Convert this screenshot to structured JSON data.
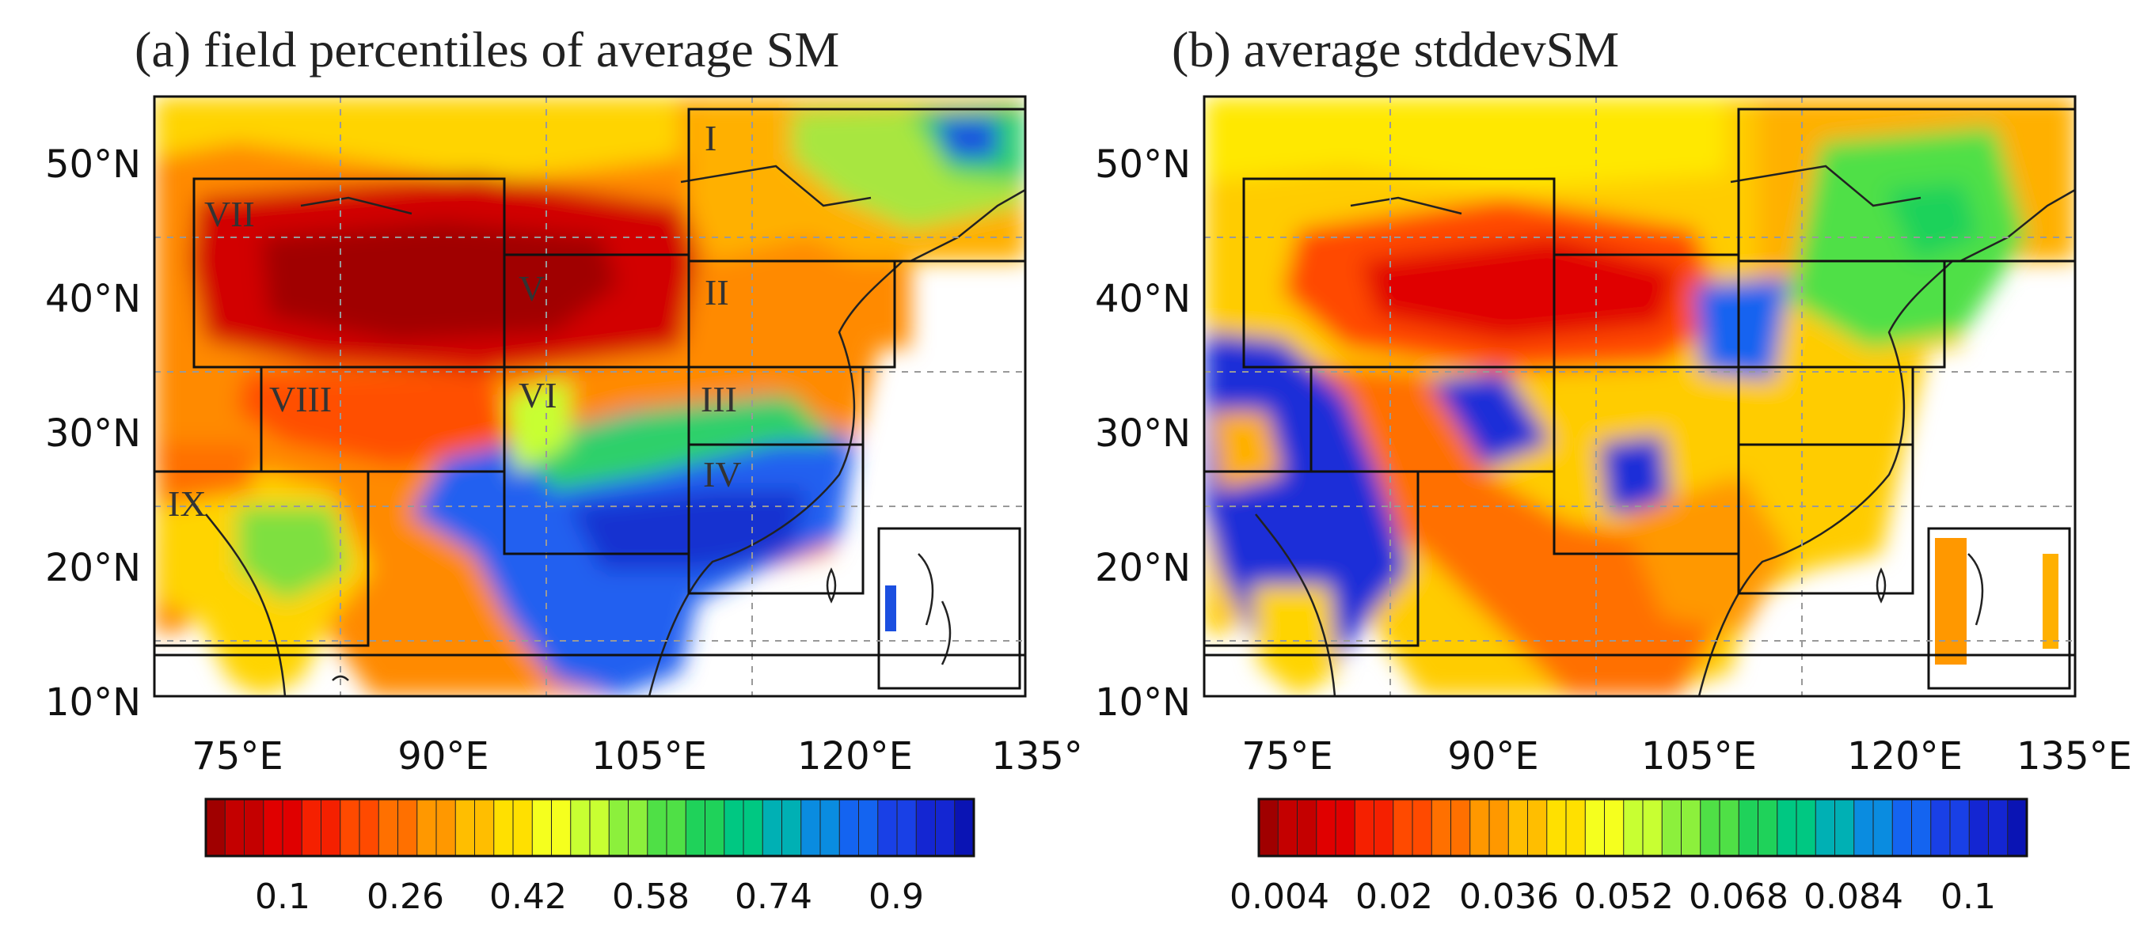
{
  "figure": {
    "panels": [
      {
        "id": "a",
        "title": "(a) field percentiles of average SM",
        "lat_ticks": [
          "50°N",
          "40°N",
          "30°N",
          "20°N",
          "10°N"
        ],
        "lon_ticks": [
          "75°E",
          "90°E",
          "105°E",
          "120°E",
          "135°"
        ],
        "region_labels": [
          "I",
          "II",
          "III",
          "IV",
          "V",
          "VI",
          "VII",
          "VIII",
          "IX"
        ],
        "colorbar": {
          "colors": [
            "#a00000",
            "#c40000",
            "#e00000",
            "#f52000",
            "#ff4a00",
            "#ff7000",
            "#ff9800",
            "#ffbe00",
            "#ffe000",
            "#f5ff1e",
            "#c8ff32",
            "#8cf03c",
            "#4fe046",
            "#1fd25a",
            "#00c882",
            "#00b0b4",
            "#0a8ce0",
            "#1464f0",
            "#1940e6",
            "#1426d2",
            "#0a14b4"
          ],
          "tick_labels": [
            "0.1",
            "0.26",
            "0.42",
            "0.58",
            "0.74",
            "0.9"
          ]
        }
      },
      {
        "id": "b",
        "title": "(b) average stddevSM",
        "lat_ticks": [
          "50°N",
          "40°N",
          "30°N",
          "20°N",
          "10°N"
        ],
        "lon_ticks": [
          "75°E",
          "90°E",
          "105°E",
          "120°E",
          "135°E"
        ],
        "colorbar": {
          "colors": [
            "#a00000",
            "#c40000",
            "#e00000",
            "#f52000",
            "#ff4a00",
            "#ff7000",
            "#ff9800",
            "#ffbe00",
            "#ffe000",
            "#f5ff1e",
            "#c8ff32",
            "#8cf03c",
            "#4fe046",
            "#1fd25a",
            "#00c882",
            "#00b0b4",
            "#0a8ce0",
            "#1464f0",
            "#1940e6",
            "#1426d2",
            "#0a14b4"
          ],
          "tick_labels": [
            "0.004",
            "0.02",
            "0.036",
            "0.052",
            "0.068",
            "0.084",
            "0.1"
          ]
        }
      }
    ]
  }
}
